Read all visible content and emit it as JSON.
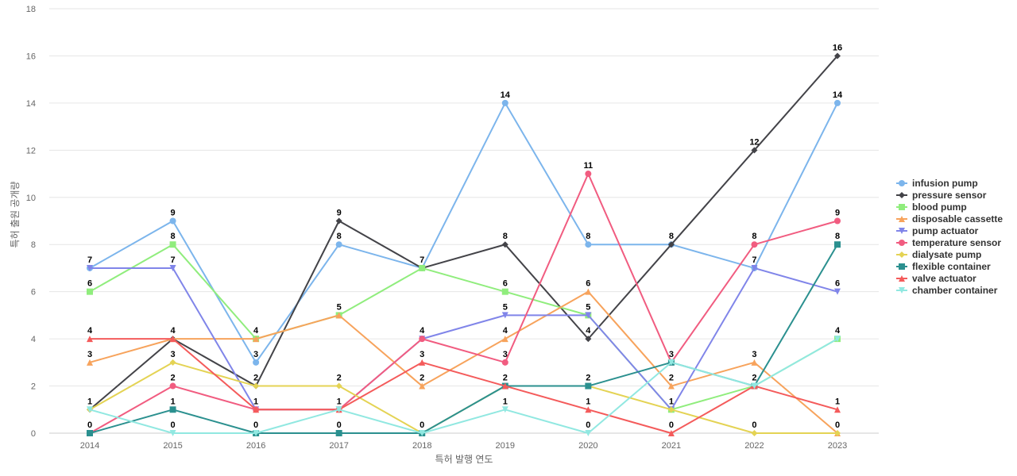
{
  "chart_data": {
    "type": "line",
    "title": "",
    "xlabel": "특허 발행 연도",
    "ylabel": "특허 출원 공개량",
    "x": [
      "2014",
      "2015",
      "2016",
      "2017",
      "2018",
      "2019",
      "2020",
      "2021",
      "2022",
      "2023"
    ],
    "ylim": [
      0,
      18
    ],
    "yticks": [
      0,
      2,
      4,
      6,
      8,
      10,
      12,
      14,
      16,
      18
    ],
    "grid": true,
    "legend_position": "right",
    "series": [
      {
        "name": "infusion pump",
        "color": "#7cb5ec",
        "marker": "circle",
        "values": [
          7,
          9,
          3,
          8,
          7,
          14,
          8,
          8,
          7,
          14
        ]
      },
      {
        "name": "pressure sensor",
        "color": "#434348",
        "marker": "diamond",
        "values": [
          1,
          4,
          2,
          9,
          7,
          8,
          4,
          8,
          12,
          16
        ]
      },
      {
        "name": "blood pump",
        "color": "#90ed7d",
        "marker": "square",
        "values": [
          6,
          8,
          4,
          5,
          7,
          6,
          5,
          1,
          2,
          4
        ]
      },
      {
        "name": "disposable cassette",
        "color": "#f7a35c",
        "marker": "triangle",
        "values": [
          3,
          4,
          4,
          5,
          2,
          4,
          6,
          2,
          3,
          0
        ]
      },
      {
        "name": "pump actuator",
        "color": "#8085e9",
        "marker": "triangle-down",
        "values": [
          7,
          7,
          1,
          1,
          4,
          5,
          5,
          1,
          7,
          6
        ]
      },
      {
        "name": "temperature sensor",
        "color": "#f15c80",
        "marker": "circle",
        "values": [
          0,
          2,
          1,
          1,
          4,
          3,
          11,
          3,
          8,
          9
        ]
      },
      {
        "name": "dialysate pump",
        "color": "#e4d354",
        "marker": "diamond",
        "values": [
          1,
          3,
          2,
          2,
          0,
          2,
          2,
          1,
          0,
          0
        ]
      },
      {
        "name": "flexible container",
        "color": "#2b908f",
        "marker": "square",
        "values": [
          0,
          1,
          0,
          0,
          0,
          2,
          2,
          3,
          2,
          8
        ]
      },
      {
        "name": "valve actuator",
        "color": "#f45b5b",
        "marker": "triangle",
        "values": [
          4,
          4,
          1,
          1,
          3,
          2,
          1,
          0,
          2,
          1
        ]
      },
      {
        "name": "chamber container",
        "color": "#91e8e1",
        "marker": "triangle-down",
        "values": [
          1,
          0,
          0,
          1,
          0,
          1,
          0,
          3,
          2,
          4
        ]
      }
    ]
  }
}
